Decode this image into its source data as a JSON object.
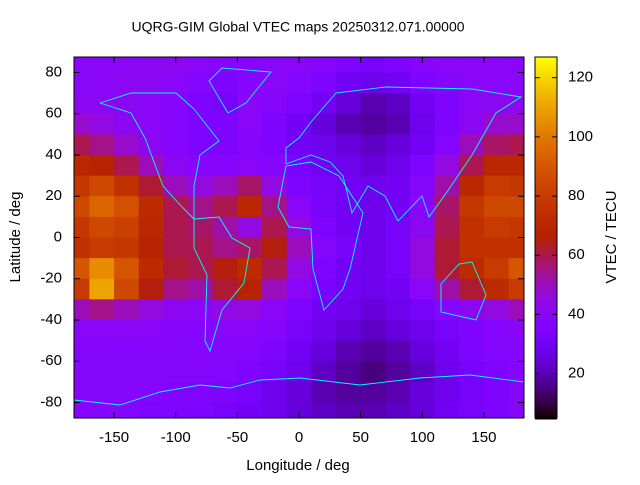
{
  "chart_data": {
    "type": "heatmap",
    "title": "UQRG-GIM Global VTEC maps 20250312.071.00000",
    "xlabel": "Longitude / deg",
    "ylabel": "Latitude / deg",
    "colorbar_label": "VTEC / TECU",
    "x": [
      -180,
      -160,
      -140,
      -120,
      -100,
      -80,
      -60,
      -40,
      -20,
      0,
      20,
      40,
      60,
      80,
      100,
      120,
      140,
      160,
      180
    ],
    "y": [
      85,
      75,
      65,
      55,
      45,
      35,
      25,
      15,
      5,
      -5,
      -15,
      -25,
      -35,
      -45,
      -55,
      -65,
      -75,
      -85
    ],
    "values": [
      [
        40,
        40,
        40,
        42,
        42,
        40,
        38,
        38,
        40,
        40,
        38,
        35,
        32,
        35,
        38,
        40,
        40,
        40,
        40
      ],
      [
        40,
        40,
        42,
        42,
        40,
        38,
        35,
        38,
        40,
        38,
        35,
        30,
        28,
        30,
        35,
        38,
        40,
        40,
        40
      ],
      [
        42,
        42,
        42,
        40,
        38,
        35,
        32,
        40,
        38,
        35,
        30,
        25,
        20,
        22,
        30,
        35,
        40,
        42,
        42
      ],
      [
        48,
        45,
        42,
        40,
        38,
        35,
        35,
        40,
        35,
        30,
        25,
        20,
        18,
        20,
        28,
        35,
        42,
        48,
        48
      ],
      [
        60,
        55,
        48,
        42,
        38,
        35,
        35,
        38,
        35,
        30,
        28,
        25,
        22,
        25,
        30,
        38,
        50,
        58,
        60
      ],
      [
        70,
        68,
        60,
        50,
        42,
        38,
        38,
        40,
        38,
        33,
        30,
        28,
        25,
        28,
        35,
        45,
        60,
        70,
        70
      ],
      [
        78,
        85,
        75,
        62,
        50,
        45,
        50,
        58,
        45,
        35,
        32,
        30,
        28,
        30,
        38,
        52,
        70,
        80,
        78
      ],
      [
        85,
        95,
        88,
        72,
        60,
        55,
        60,
        70,
        55,
        40,
        32,
        30,
        28,
        30,
        40,
        58,
        78,
        85,
        85
      ],
      [
        78,
        85,
        82,
        70,
        60,
        58,
        52,
        45,
        60,
        45,
        35,
        30,
        28,
        32,
        42,
        60,
        75,
        80,
        78
      ],
      [
        75,
        80,
        78,
        68,
        60,
        60,
        55,
        58,
        65,
        50,
        38,
        32,
        28,
        32,
        45,
        62,
        75,
        75,
        75
      ],
      [
        90,
        105,
        90,
        72,
        62,
        60,
        65,
        72,
        60,
        45,
        35,
        30,
        28,
        32,
        45,
        62,
        72,
        80,
        90
      ],
      [
        80,
        110,
        85,
        65,
        55,
        52,
        62,
        68,
        50,
        40,
        33,
        30,
        28,
        30,
        40,
        52,
        62,
        72,
        80
      ],
      [
        50,
        55,
        50,
        45,
        42,
        40,
        45,
        45,
        40,
        35,
        30,
        28,
        25,
        28,
        32,
        38,
        42,
        45,
        50
      ],
      [
        40,
        40,
        40,
        40,
        38,
        38,
        40,
        40,
        38,
        32,
        28,
        25,
        22,
        25,
        28,
        32,
        35,
        38,
        40
      ],
      [
        38,
        38,
        38,
        38,
        38,
        38,
        38,
        38,
        35,
        30,
        25,
        20,
        18,
        20,
        25,
        30,
        35,
        38,
        38
      ],
      [
        38,
        38,
        38,
        38,
        38,
        38,
        38,
        35,
        32,
        28,
        22,
        18,
        15,
        18,
        22,
        28,
        32,
        35,
        38
      ],
      [
        38,
        38,
        38,
        38,
        36,
        36,
        35,
        32,
        28,
        25,
        20,
        18,
        18,
        20,
        25,
        28,
        32,
        35,
        38
      ],
      [
        38,
        38,
        38,
        36,
        35,
        35,
        32,
        30,
        28,
        25,
        22,
        20,
        20,
        22,
        25,
        30,
        32,
        35,
        38
      ]
    ],
    "xlim": [
      -182.5,
      182.5
    ],
    "ylim": [
      -87.5,
      87.5
    ],
    "xticks": [
      -150,
      -100,
      -50,
      0,
      50,
      100,
      150
    ],
    "yticks": [
      -80,
      -60,
      -40,
      -20,
      0,
      20,
      40,
      60,
      80
    ],
    "clim": [
      5,
      127
    ],
    "cticks": [
      20,
      40,
      60,
      80,
      100,
      120
    ],
    "coastline_color": "#00ffff"
  }
}
